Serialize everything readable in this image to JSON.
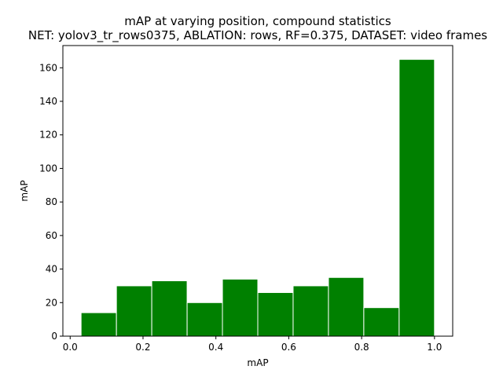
{
  "chart_data": {
    "type": "bar",
    "title": "mAP at varying position, compound statistics",
    "subtitle": "NET: yolov3_tr_rows0375, ABLATION: rows, RF=0.375, DATASET: video frames",
    "xlabel": "mAP",
    "ylabel": "mAP",
    "xlim": [
      -0.02,
      1.05
    ],
    "ylim": [
      0,
      173.25
    ],
    "xticks": [
      0.0,
      0.2,
      0.4,
      0.6,
      0.8,
      1.0
    ],
    "xtick_labels": [
      "0.0",
      "0.2",
      "0.4",
      "0.6",
      "0.8",
      "1.0"
    ],
    "yticks": [
      0,
      20,
      40,
      60,
      80,
      100,
      120,
      140,
      160
    ],
    "ytick_labels": [
      "0",
      "20",
      "40",
      "60",
      "80",
      "100",
      "120",
      "140",
      "160"
    ],
    "bins": [
      [
        0.03,
        0.127
      ],
      [
        0.127,
        0.224
      ],
      [
        0.224,
        0.321
      ],
      [
        0.321,
        0.418
      ],
      [
        0.418,
        0.515
      ],
      [
        0.515,
        0.612
      ],
      [
        0.612,
        0.709
      ],
      [
        0.709,
        0.806
      ],
      [
        0.806,
        0.903
      ],
      [
        0.903,
        1.0
      ]
    ],
    "values": [
      14,
      30,
      33,
      20,
      34,
      26,
      30,
      35,
      17,
      165
    ],
    "bar_color": "#008000",
    "edge_color": "#ffffff",
    "grid": false,
    "legend": "none"
  }
}
